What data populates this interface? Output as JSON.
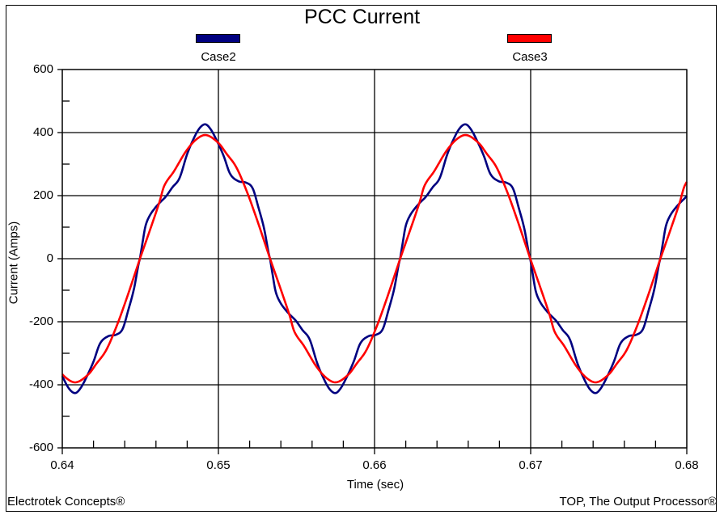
{
  "title": "PCC Current",
  "legend": [
    {
      "label": "Case2",
      "color": "#000080"
    },
    {
      "label": "Case3",
      "color": "#ff0000"
    }
  ],
  "axes": {
    "xlabel": "Time (sec)",
    "ylabel": "Current (Amps)",
    "xticks": [
      "0.64",
      "0.65",
      "0.66",
      "0.67",
      "0.68"
    ],
    "yticks": [
      "600",
      "400",
      "200",
      "0",
      "-200",
      "-400",
      "-600"
    ]
  },
  "footer": {
    "left": "Electrotek Concepts®",
    "right": "TOP, The Output Processor®"
  },
  "chart_data": {
    "type": "line",
    "title": "PCC Current",
    "xlabel": "Time (sec)",
    "ylabel": "Current (Amps)",
    "xlim": [
      0.64,
      0.68
    ],
    "ylim": [
      -600,
      600
    ],
    "grid": true,
    "legend_position": "top",
    "x": [
      0.64,
      0.642,
      0.644,
      0.646,
      0.648,
      0.65,
      0.652,
      0.654,
      0.656,
      0.658,
      0.66,
      0.662,
      0.664,
      0.666,
      0.668,
      0.67,
      0.672,
      0.674,
      0.676,
      0.678,
      0.68
    ],
    "series": [
      {
        "name": "Case2",
        "color": "#000080",
        "values": [
          -370,
          -326,
          -200,
          163,
          332,
          363,
          232,
          -141,
          -280,
          -392,
          -242,
          104,
          244,
          415,
          245,
          -3,
          -222,
          -417,
          -258,
          -75,
          200
        ]
      },
      {
        "name": "Case3",
        "color": "#ff0000",
        "values": [
          -364,
          -333,
          -142,
          147,
          345,
          367,
          188,
          -98,
          -320,
          -377,
          -230,
          51,
          292,
          387,
          280,
          -2,
          -272,
          -390,
          -304,
          -36,
          230
        ]
      }
    ],
    "waveform_model": {
      "frequency_hz": 60,
      "zero_crossing_t": 0.644974,
      "half_cycle_points_deg_amps": {
        "Case2": [
          [
            0,
            0
          ],
          [
            3.6,
            51
          ],
          [
            7.6,
            103
          ],
          [
            13.4,
            136
          ],
          [
            21.3,
            162
          ],
          [
            28,
            179
          ],
          [
            35.8,
            197
          ],
          [
            44.8,
            226
          ],
          [
            54.8,
            256
          ],
          [
            65.5,
            333
          ],
          [
            76.7,
            392
          ],
          [
            84,
            418
          ],
          [
            91,
            426
          ],
          [
            98,
            410
          ],
          [
            105.8,
            377
          ],
          [
            115.8,
            326
          ],
          [
            124.8,
            269
          ],
          [
            136,
            246
          ],
          [
            147,
            241
          ],
          [
            156,
            223
          ],
          [
            164,
            162
          ],
          [
            171.8,
            95
          ],
          [
            178,
            18
          ],
          [
            180,
            0
          ]
        ],
        "Case3": [
          [
            0,
            0
          ],
          [
            15.7,
            103
          ],
          [
            26.9,
            179
          ],
          [
            33.6,
            231
          ],
          [
            47,
            277
          ],
          [
            63.8,
            341
          ],
          [
            78.3,
            379
          ],
          [
            91.8,
            392
          ],
          [
            108.6,
            367
          ],
          [
            119.8,
            333
          ],
          [
            133.3,
            290
          ],
          [
            147.9,
            213
          ],
          [
            161.3,
            128
          ],
          [
            173.6,
            44
          ],
          [
            180,
            0
          ]
        ]
      }
    }
  }
}
